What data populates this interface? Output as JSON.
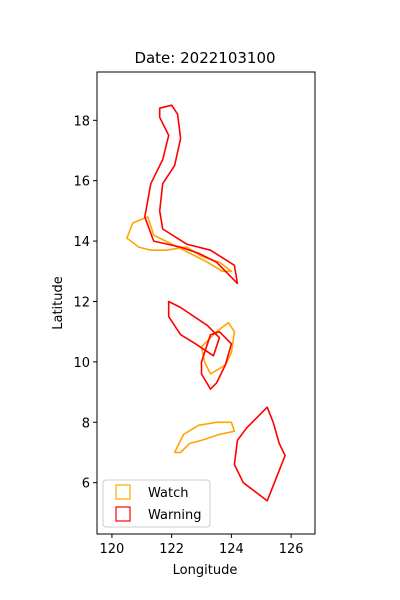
{
  "chart_data": {
    "type": "map",
    "title": "Date: 2022103100",
    "xlabel": "Longitude",
    "ylabel": "Latitude",
    "xlim": [
      119.5,
      126.8
    ],
    "ylim": [
      4.3,
      19.6
    ],
    "xticks": [
      120,
      122,
      124,
      126
    ],
    "yticks": [
      6,
      8,
      10,
      12,
      14,
      16,
      18
    ],
    "grid": false,
    "legend_position": "lower-left",
    "legend": [
      {
        "name": "Watch",
        "color": "#FFA500"
      },
      {
        "name": "Warning",
        "color": "#FF0000"
      }
    ],
    "series": [
      {
        "name": "Watch",
        "color": "#FFA500",
        "polygons": [
          [
            [
              120.5,
              14.1
            ],
            [
              120.7,
              14.6
            ],
            [
              121.2,
              14.8
            ],
            [
              121.4,
              14.2
            ],
            [
              122.0,
              13.9
            ],
            [
              122.6,
              13.6
            ],
            [
              123.2,
              13.3
            ],
            [
              123.7,
              13.0
            ],
            [
              124.0,
              13.0
            ],
            [
              123.6,
              13.3
            ],
            [
              123.0,
              13.5
            ],
            [
              122.5,
              13.8
            ],
            [
              121.8,
              13.7
            ],
            [
              121.3,
              13.7
            ],
            [
              120.9,
              13.8
            ],
            [
              120.5,
              14.1
            ]
          ],
          [
            [
              123.0,
              10.5
            ],
            [
              123.5,
              11.0
            ],
            [
              123.9,
              11.3
            ],
            [
              124.1,
              11.0
            ],
            [
              124.0,
              10.3
            ],
            [
              123.8,
              9.9
            ],
            [
              123.3,
              9.6
            ],
            [
              123.1,
              10.0
            ],
            [
              123.0,
              10.5
            ]
          ],
          [
            [
              122.1,
              7.0
            ],
            [
              122.4,
              7.6
            ],
            [
              122.9,
              7.9
            ],
            [
              123.5,
              8.0
            ],
            [
              124.0,
              8.0
            ],
            [
              124.1,
              7.7
            ],
            [
              123.6,
              7.6
            ],
            [
              123.0,
              7.4
            ],
            [
              122.6,
              7.3
            ],
            [
              122.3,
              7.0
            ],
            [
              122.1,
              7.0
            ]
          ]
        ]
      },
      {
        "name": "Warning",
        "color": "#FF0000",
        "polygons": [
          [
            [
              121.6,
              18.4
            ],
            [
              122.0,
              18.5
            ],
            [
              122.2,
              18.2
            ],
            [
              122.3,
              17.4
            ],
            [
              122.1,
              16.5
            ],
            [
              121.7,
              15.9
            ],
            [
              121.6,
              15.0
            ],
            [
              121.7,
              14.4
            ],
            [
              122.5,
              13.9
            ],
            [
              123.3,
              13.7
            ],
            [
              124.1,
              13.2
            ],
            [
              124.2,
              12.6
            ],
            [
              124.0,
              12.8
            ],
            [
              123.5,
              13.3
            ],
            [
              122.9,
              13.6
            ],
            [
              122.3,
              13.8
            ],
            [
              121.4,
              14.0
            ],
            [
              121.1,
              14.8
            ],
            [
              121.3,
              15.9
            ],
            [
              121.7,
              16.7
            ],
            [
              121.9,
              17.5
            ],
            [
              121.6,
              18.1
            ],
            [
              121.6,
              18.4
            ]
          ],
          [
            [
              121.9,
              12.0
            ],
            [
              122.3,
              11.8
            ],
            [
              123.2,
              11.2
            ],
            [
              123.6,
              10.8
            ],
            [
              123.4,
              10.2
            ],
            [
              122.8,
              10.6
            ],
            [
              122.3,
              10.9
            ],
            [
              121.9,
              11.5
            ],
            [
              121.9,
              12.0
            ]
          ],
          [
            [
              123.0,
              10.0
            ],
            [
              123.3,
              10.9
            ],
            [
              123.6,
              11.0
            ],
            [
              124.0,
              10.6
            ],
            [
              123.8,
              9.9
            ],
            [
              123.5,
              9.3
            ],
            [
              123.3,
              9.1
            ],
            [
              123.0,
              9.6
            ],
            [
              123.0,
              10.0
            ]
          ],
          [
            [
              124.2,
              7.4
            ],
            [
              124.5,
              7.8
            ],
            [
              124.9,
              8.2
            ],
            [
              125.2,
              8.5
            ],
            [
              125.4,
              8.0
            ],
            [
              125.6,
              7.3
            ],
            [
              125.8,
              6.9
            ],
            [
              125.6,
              6.4
            ],
            [
              125.4,
              5.9
            ],
            [
              125.2,
              5.4
            ],
            [
              124.8,
              5.7
            ],
            [
              124.4,
              6.0
            ],
            [
              124.1,
              6.6
            ],
            [
              124.2,
              7.4
            ]
          ]
        ]
      }
    ]
  }
}
